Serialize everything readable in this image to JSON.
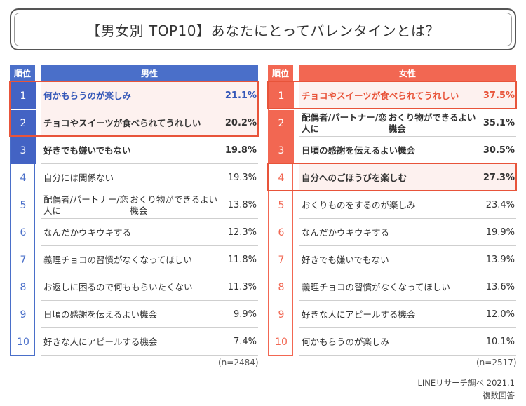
{
  "title": "【男女別 TOP10】あなたにとってバレンタインとは？",
  "colors": {
    "male_header": "#4a6fc9",
    "male_rank_fill": "#4363c4",
    "female_header": "#f26752",
    "female_rank_fill": "#f26752",
    "highlight_border": "#e8543a",
    "highlight_bg": "#fdf1ef"
  },
  "chart_data": [
    {
      "type": "table",
      "title": "男性",
      "rank_header": "順位",
      "n_label": "(n=2484)",
      "highlighted_ranks": [
        1,
        2
      ],
      "filled_ranks": [
        1,
        2,
        3
      ],
      "rows": [
        {
          "rank": "1",
          "label": "何かもらうのが楽しみ",
          "value": "21.1%"
        },
        {
          "rank": "2",
          "label": "チョコやスイーツが食べられてうれしい",
          "value": "20.2%"
        },
        {
          "rank": "3",
          "label": "好きでも嫌いでもない",
          "value": "19.8%"
        },
        {
          "rank": "4",
          "label": "自分には関係ない",
          "value": "19.3%"
        },
        {
          "rank": "5",
          "label": "配偶者/パートナー/恋人におくり物ができるよい機会",
          "value": "13.8%"
        },
        {
          "rank": "6",
          "label": "なんだかウキウキする",
          "value": "12.3%"
        },
        {
          "rank": "7",
          "label": "義理チョコの習慣がなくなってほしい",
          "value": "11.8%"
        },
        {
          "rank": "8",
          "label": "お返しに困るので何ももらいたくない",
          "value": "11.3%"
        },
        {
          "rank": "9",
          "label": "日頃の感謝を伝えるよい機会",
          "value": "9.9%"
        },
        {
          "rank": "10",
          "label": "好きな人にアピールする機会",
          "value": "7.4%"
        }
      ]
    },
    {
      "type": "table",
      "title": "女性",
      "rank_header": "順位",
      "n_label": "(n=2517)",
      "highlighted_ranks": [
        1,
        4
      ],
      "filled_ranks": [
        1,
        2,
        3
      ],
      "rows": [
        {
          "rank": "1",
          "label": "チョコやスイーツが食べられてうれしい",
          "value": "37.5%"
        },
        {
          "rank": "2",
          "label": "配偶者/パートナー/恋人におくり物ができるよい機会",
          "value": "35.1%"
        },
        {
          "rank": "3",
          "label": "日頃の感謝を伝えるよい機会",
          "value": "30.5%"
        },
        {
          "rank": "4",
          "label": "自分へのごほうびを楽しむ",
          "value": "27.3%"
        },
        {
          "rank": "5",
          "label": "おくりものをするのが楽しみ",
          "value": "23.4%"
        },
        {
          "rank": "6",
          "label": "なんだかウキウキする",
          "value": "19.9%"
        },
        {
          "rank": "7",
          "label": "好きでも嫌いでもない",
          "value": "13.9%"
        },
        {
          "rank": "8",
          "label": "義理チョコの習慣がなくなってほしい",
          "value": "13.6%"
        },
        {
          "rank": "9",
          "label": "好きな人にアピールする機会",
          "value": "12.0%"
        },
        {
          "rank": "10",
          "label": "何かもらうのが楽しみ",
          "value": "10.1%"
        }
      ]
    }
  ],
  "source": {
    "line1": "LINEリサーチ調べ 2021.1",
    "line2": "複数回答"
  }
}
